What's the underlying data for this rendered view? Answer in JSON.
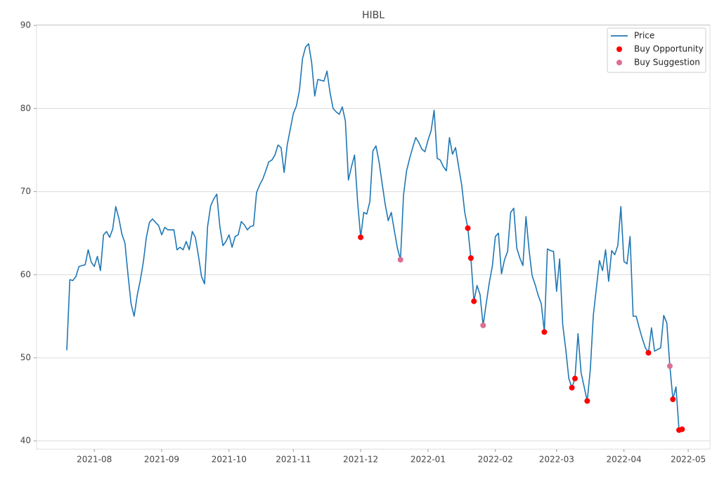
{
  "chart_data": {
    "type": "line",
    "title": "HIBL",
    "categories": [
      null,
      null,
      null,
      null,
      null,
      null,
      null,
      null,
      null,
      "2021-08",
      null,
      null,
      null,
      null,
      null,
      null,
      null,
      null,
      null,
      null,
      null,
      null,
      null,
      null,
      null,
      null,
      null,
      null,
      null,
      null,
      null,
      "2021-09",
      null,
      null,
      null,
      null,
      null,
      null,
      null,
      null,
      null,
      null,
      null,
      null,
      null,
      null,
      null,
      null,
      null,
      null,
      null,
      null,
      null,
      "2021-10",
      null,
      null,
      null,
      null,
      null,
      null,
      null,
      null,
      null,
      null,
      null,
      null,
      null,
      null,
      null,
      null,
      null,
      null,
      null,
      null,
      "2021-11",
      null,
      null,
      null,
      null,
      null,
      null,
      null,
      null,
      null,
      null,
      null,
      null,
      null,
      null,
      null,
      null,
      null,
      null,
      null,
      null,
      null,
      "2021-12",
      null,
      null,
      null,
      null,
      null,
      null,
      null,
      null,
      null,
      null,
      null,
      null,
      null,
      null,
      null,
      null,
      null,
      null,
      null,
      null,
      null,
      "2022-01",
      null,
      null,
      null,
      null,
      null,
      null,
      null,
      null,
      null,
      null,
      null,
      null,
      null,
      null,
      null,
      null,
      null,
      null,
      null,
      null,
      null,
      "2022-02",
      null,
      null,
      null,
      null,
      null,
      null,
      null,
      null,
      null,
      null,
      null,
      null,
      null,
      null,
      null,
      null,
      null,
      null,
      null,
      "2022-03",
      null,
      null,
      null,
      null,
      null,
      null,
      null,
      null,
      null,
      null,
      null,
      null,
      null,
      null,
      null,
      null,
      null,
      null,
      null,
      null,
      null,
      "2022-04",
      null,
      null,
      null,
      null,
      null,
      null,
      null,
      null,
      null,
      null,
      null,
      null,
      null,
      null,
      null,
      null,
      null,
      null,
      null,
      null,
      "2022-05"
    ],
    "series": [
      {
        "name": "Price",
        "type": "line",
        "color": "#1f77b4",
        "values": [
          50.9,
          59.4,
          59.3,
          59.8,
          61.0,
          61.1,
          61.2,
          63.0,
          61.5,
          61.0,
          62.2,
          60.5,
          64.8,
          65.2,
          64.5,
          65.5,
          68.2,
          66.8,
          64.9,
          63.8,
          60.0,
          56.5,
          55.0,
          57.5,
          59.3,
          61.5,
          64.5,
          66.3,
          66.7,
          66.3,
          65.9,
          64.8,
          65.7,
          65.4,
          65.4,
          65.4,
          63.0,
          63.3,
          63.0,
          64.0,
          63.0,
          65.2,
          64.5,
          62.3,
          59.8,
          58.9,
          65.8,
          68.3,
          69.1,
          69.7,
          65.8,
          63.5,
          64.0,
          64.8,
          63.3,
          64.6,
          64.8,
          66.4,
          66.0,
          65.4,
          65.8,
          65.9,
          69.9,
          70.8,
          71.5,
          72.5,
          73.6,
          73.8,
          74.4,
          75.6,
          75.3,
          72.3,
          75.6,
          77.5,
          79.4,
          80.3,
          82.2,
          86.0,
          87.4,
          87.8,
          85.5,
          81.5,
          83.5,
          83.4,
          83.3,
          84.5,
          81.9,
          80.0,
          79.6,
          79.3,
          80.2,
          78.5,
          71.4,
          73.0,
          74.4,
          68.8,
          64.5,
          67.5,
          67.3,
          68.8,
          74.9,
          75.5,
          73.6,
          71.0,
          68.5,
          66.5,
          67.5,
          65.3,
          63.2,
          61.8,
          69.6,
          72.5,
          74.0,
          75.3,
          76.5,
          75.9,
          75.1,
          74.8,
          76.2,
          77.3,
          79.8,
          74.0,
          73.8,
          73.0,
          72.5,
          76.5,
          74.5,
          75.3,
          73.0,
          70.8,
          67.5,
          65.6,
          62.0,
          56.8,
          58.7,
          57.6,
          53.9,
          56.5,
          59.0,
          61.0,
          64.6,
          65.0,
          60.1,
          61.8,
          62.8,
          67.5,
          68.0,
          63.2,
          62.0,
          61.1,
          67.0,
          63.0,
          59.9,
          58.8,
          57.5,
          56.5,
          53.1,
          63.1,
          62.9,
          62.8,
          58.0,
          61.9,
          54.0,
          51.0,
          47.5,
          46.4,
          47.5,
          52.9,
          48.2,
          46.5,
          44.8,
          48.5,
          55.1,
          58.4,
          61.7,
          60.5,
          63.0,
          59.2,
          62.9,
          62.4,
          63.5,
          68.2,
          61.6,
          61.3,
          64.6,
          55.0,
          55.0,
          53.6,
          52.3,
          51.2,
          50.6,
          53.6,
          50.8,
          51.0,
          51.2,
          55.1,
          54.2,
          49.0,
          45.0,
          46.5,
          41.3,
          41.4,
          null,
          null
        ]
      },
      {
        "name": "Buy Opportunity",
        "type": "scatter",
        "color": "#ff0000",
        "values": [
          null,
          null,
          null,
          null,
          null,
          null,
          null,
          null,
          null,
          null,
          null,
          null,
          null,
          null,
          null,
          null,
          null,
          null,
          null,
          null,
          null,
          null,
          null,
          null,
          null,
          null,
          null,
          null,
          null,
          null,
          null,
          null,
          null,
          null,
          null,
          null,
          null,
          null,
          null,
          null,
          null,
          null,
          null,
          null,
          null,
          null,
          null,
          null,
          null,
          null,
          null,
          null,
          null,
          null,
          null,
          null,
          null,
          null,
          null,
          null,
          null,
          null,
          null,
          null,
          null,
          null,
          null,
          null,
          null,
          null,
          null,
          null,
          null,
          null,
          null,
          null,
          null,
          null,
          null,
          null,
          null,
          null,
          null,
          null,
          null,
          null,
          null,
          null,
          null,
          null,
          null,
          null,
          null,
          null,
          null,
          null,
          64.5,
          null,
          null,
          null,
          null,
          null,
          null,
          null,
          null,
          null,
          null,
          null,
          null,
          null,
          null,
          null,
          null,
          null,
          null,
          null,
          null,
          null,
          null,
          null,
          null,
          null,
          null,
          null,
          null,
          null,
          null,
          null,
          null,
          null,
          null,
          65.6,
          62.0,
          56.8,
          null,
          null,
          null,
          null,
          null,
          null,
          null,
          null,
          null,
          null,
          null,
          null,
          null,
          null,
          null,
          null,
          null,
          null,
          null,
          null,
          null,
          null,
          53.1,
          null,
          null,
          null,
          null,
          null,
          null,
          null,
          null,
          46.4,
          47.5,
          null,
          null,
          null,
          44.8,
          null,
          null,
          null,
          null,
          null,
          null,
          null,
          null,
          null,
          null,
          null,
          null,
          null,
          null,
          null,
          null,
          null,
          null,
          null,
          50.6,
          null,
          null,
          null,
          null,
          null,
          null,
          null,
          45.0,
          null,
          41.3,
          41.4,
          null,
          null
        ]
      },
      {
        "name": "Buy Suggestion",
        "type": "scatter",
        "color": "#db7093",
        "values": [
          null,
          null,
          null,
          null,
          null,
          null,
          null,
          null,
          null,
          null,
          null,
          null,
          null,
          null,
          null,
          null,
          null,
          null,
          null,
          null,
          null,
          null,
          null,
          null,
          null,
          null,
          null,
          null,
          null,
          null,
          null,
          null,
          null,
          null,
          null,
          null,
          null,
          null,
          null,
          null,
          null,
          null,
          null,
          null,
          null,
          null,
          null,
          null,
          null,
          null,
          null,
          null,
          null,
          null,
          null,
          null,
          null,
          null,
          null,
          null,
          null,
          null,
          null,
          null,
          null,
          null,
          null,
          null,
          null,
          null,
          null,
          null,
          null,
          null,
          null,
          null,
          null,
          null,
          null,
          null,
          null,
          null,
          null,
          null,
          null,
          null,
          null,
          null,
          null,
          null,
          null,
          null,
          null,
          null,
          null,
          null,
          null,
          null,
          null,
          null,
          null,
          null,
          null,
          null,
          null,
          null,
          null,
          null,
          null,
          61.8,
          null,
          null,
          null,
          null,
          null,
          null,
          null,
          null,
          null,
          null,
          null,
          null,
          null,
          null,
          null,
          null,
          null,
          null,
          null,
          null,
          null,
          null,
          null,
          null,
          null,
          null,
          53.9,
          null,
          null,
          null,
          null,
          null,
          null,
          null,
          null,
          null,
          null,
          null,
          null,
          null,
          null,
          null,
          null,
          null,
          null,
          null,
          null,
          null,
          null,
          null,
          null,
          null,
          null,
          null,
          null,
          null,
          null,
          null,
          null,
          null,
          null,
          null,
          null,
          null,
          null,
          null,
          null,
          null,
          null,
          null,
          null,
          null,
          null,
          null,
          null,
          null,
          null,
          null,
          null,
          null,
          null,
          null,
          null,
          null,
          null,
          null,
          null,
          49.0,
          null,
          null,
          null,
          null,
          null,
          null
        ]
      }
    ],
    "ylim": [
      39,
      90.1
    ],
    "yticks": [
      40,
      50,
      60,
      70,
      80,
      90
    ],
    "grid": "y",
    "legend": "upper right"
  }
}
